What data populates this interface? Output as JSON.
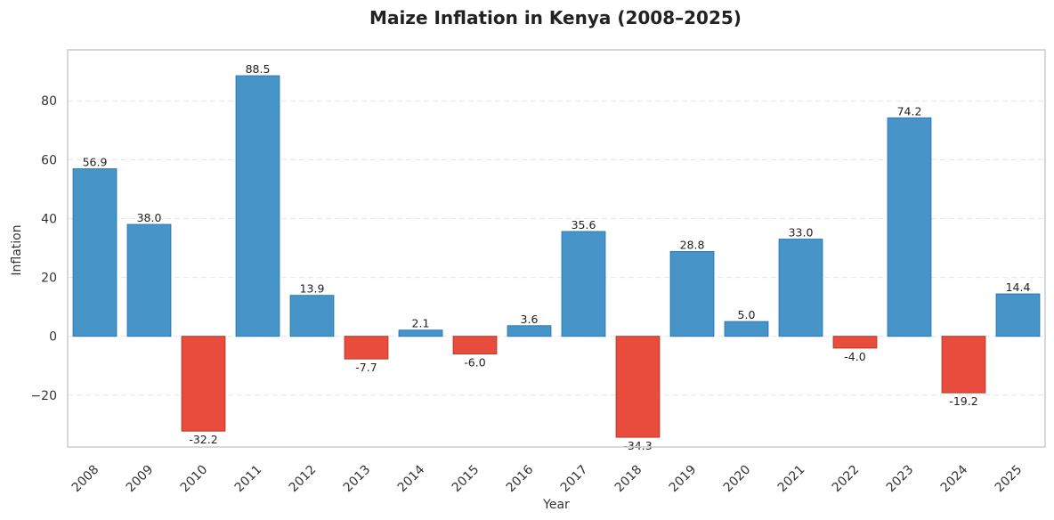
{
  "chart_data": {
    "type": "bar",
    "title": "Maize Inflation in Kenya (2008–2025)",
    "xlabel": "Year",
    "ylabel": "Inflation",
    "categories": [
      "2008",
      "2009",
      "2010",
      "2011",
      "2012",
      "2013",
      "2014",
      "2015",
      "2016",
      "2017",
      "2018",
      "2019",
      "2020",
      "2021",
      "2022",
      "2023",
      "2024",
      "2025"
    ],
    "values": [
      56.9,
      38.0,
      -32.2,
      88.5,
      13.9,
      -7.7,
      2.1,
      -6.0,
      3.6,
      35.6,
      -34.3,
      28.8,
      5.0,
      33.0,
      -4.0,
      74.2,
      -19.2,
      14.4
    ],
    "data_labels": [
      "56.9",
      "38.0",
      "-32.2",
      "88.5",
      "13.9",
      "-7.7",
      "2.1",
      "-6.0",
      "3.6",
      "35.6",
      "-34.3",
      "28.8",
      "5.0",
      "33.0",
      "-4.0",
      "74.2",
      "-19.2",
      "14.4"
    ],
    "ylim": [
      -37.6,
      97.3
    ],
    "yticks": [
      -20,
      0,
      20,
      40,
      60,
      80
    ],
    "ytick_labels": [
      "−20",
      "0",
      "20",
      "40",
      "60",
      "80"
    ],
    "grid": true,
    "colors": {
      "positive": "#4694c8",
      "positive_edge": "#2b7bb4",
      "negative": "#e74c3c",
      "negative_edge": "#c0392b",
      "grid": "#e6e6e6",
      "frame": "#cccccc"
    }
  }
}
